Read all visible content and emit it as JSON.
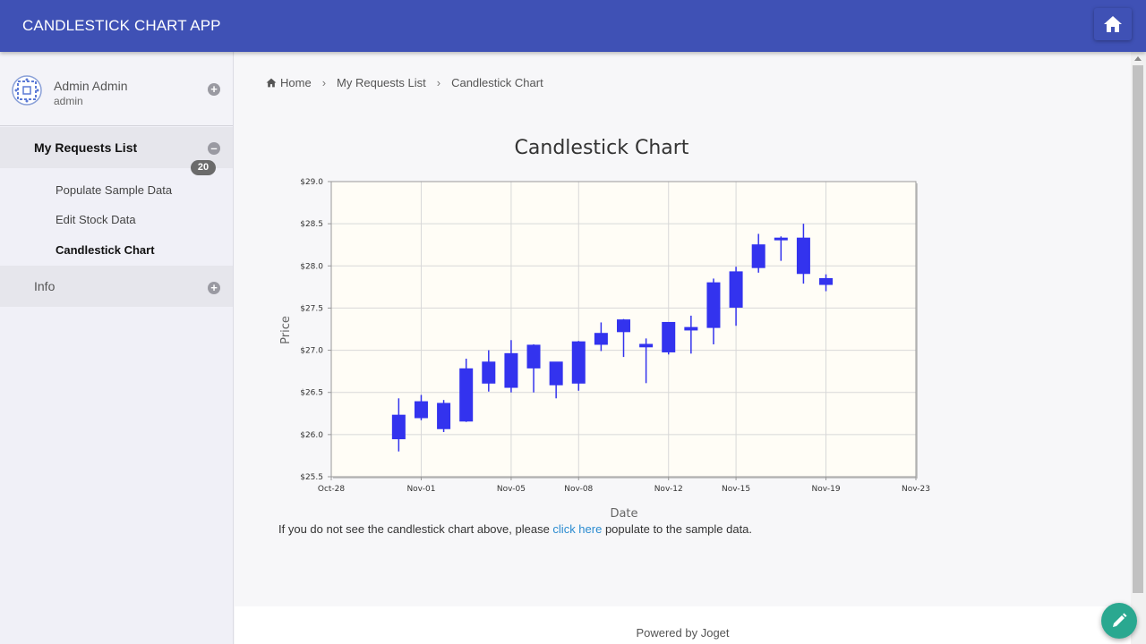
{
  "header": {
    "app_title": "CANDLESTICK CHART APP",
    "home_icon": "home-icon"
  },
  "sidebar": {
    "user": {
      "name": "Admin Admin",
      "username": "admin"
    },
    "categories": [
      {
        "label": "My Requests List",
        "expanded": true,
        "items": [
          {
            "label": "Populate Sample Data"
          },
          {
            "label": "Edit Stock Data",
            "badge": "20"
          },
          {
            "label": "Candlestick Chart",
            "active": true
          }
        ]
      },
      {
        "label": "Info",
        "expanded": false,
        "items": []
      }
    ]
  },
  "breadcrumb": {
    "home": "Home",
    "items": [
      "My Requests List",
      "Candlestick Chart"
    ]
  },
  "note": {
    "before": "If you do not see the candlestick chart above, please ",
    "link": "click here",
    "after": " populate to the sample data."
  },
  "footer": {
    "text": "Powered by Joget"
  },
  "colors": {
    "topbar": "#3f51b5",
    "candle": "#3333ee",
    "fab": "#2aa890",
    "link": "#2a8bd0"
  },
  "chart_data": {
    "type": "candlestick",
    "title": "Candlestick Chart",
    "xlabel": "Date",
    "ylabel": "Price",
    "ylim": [
      25.5,
      29.0
    ],
    "y_ticks": [
      "$25.5",
      "$26.0",
      "$26.5",
      "$27.0",
      "$27.5",
      "$28.0",
      "$28.5",
      "$29.0"
    ],
    "x_range": [
      "Oct-28",
      "Nov-23"
    ],
    "x_ticks": [
      "Oct-28",
      "Nov-01",
      "Nov-05",
      "Nov-08",
      "Nov-12",
      "Nov-15",
      "Nov-19",
      "Nov-23"
    ],
    "grid": true,
    "series": [
      {
        "date": "Oct-31",
        "open": 26.23,
        "high": 26.43,
        "low": 25.8,
        "close": 25.95
      },
      {
        "date": "Nov-01",
        "open": 26.2,
        "high": 26.47,
        "low": 26.17,
        "close": 26.39
      },
      {
        "date": "Nov-02",
        "open": 26.37,
        "high": 26.41,
        "low": 26.03,
        "close": 26.07
      },
      {
        "date": "Nov-03",
        "open": 26.16,
        "high": 26.9,
        "low": 26.15,
        "close": 26.78
      },
      {
        "date": "Nov-04",
        "open": 26.61,
        "high": 27.0,
        "low": 26.51,
        "close": 26.86
      },
      {
        "date": "Nov-05",
        "open": 26.56,
        "high": 27.12,
        "low": 26.5,
        "close": 26.96
      },
      {
        "date": "Nov-06",
        "open": 27.06,
        "high": 27.07,
        "low": 26.5,
        "close": 26.79
      },
      {
        "date": "Nov-07",
        "open": 26.86,
        "high": 26.86,
        "low": 26.43,
        "close": 26.59
      },
      {
        "date": "Nov-08",
        "open": 26.61,
        "high": 27.11,
        "low": 26.52,
        "close": 27.1
      },
      {
        "date": "Nov-09",
        "open": 27.07,
        "high": 27.33,
        "low": 26.99,
        "close": 27.2
      },
      {
        "date": "Nov-10",
        "open": 27.22,
        "high": 27.37,
        "low": 26.92,
        "close": 27.36
      },
      {
        "date": "Nov-11",
        "open": 27.07,
        "high": 27.14,
        "low": 26.61,
        "close": 27.04
      },
      {
        "date": "Nov-12",
        "open": 26.98,
        "high": 27.33,
        "low": 26.95,
        "close": 27.33
      },
      {
        "date": "Nov-13",
        "open": 27.24,
        "high": 27.41,
        "low": 26.96,
        "close": 27.27
      },
      {
        "date": "Nov-14",
        "open": 27.27,
        "high": 27.85,
        "low": 27.07,
        "close": 27.8
      },
      {
        "date": "Nov-15",
        "open": 27.51,
        "high": 27.99,
        "low": 27.29,
        "close": 27.93
      },
      {
        "date": "Nov-16",
        "open": 27.98,
        "high": 28.38,
        "low": 27.92,
        "close": 28.25
      },
      {
        "date": "Nov-17",
        "open": 28.31,
        "high": 28.35,
        "low": 28.06,
        "close": 28.33
      },
      {
        "date": "Nov-18",
        "open": 28.33,
        "high": 28.5,
        "low": 27.79,
        "close": 27.91
      },
      {
        "date": "Nov-19",
        "open": 27.85,
        "high": 27.9,
        "low": 27.7,
        "close": 27.78
      }
    ]
  }
}
